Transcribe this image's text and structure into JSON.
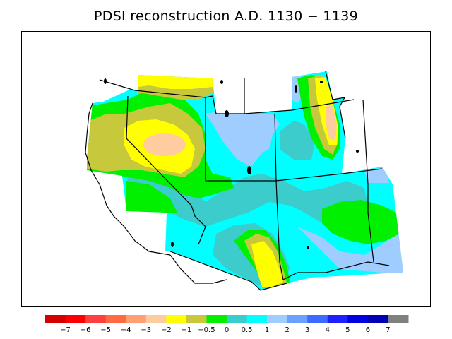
{
  "title": "PDSI reconstruction A.D. 1130 − 1139",
  "legend": {
    "colors": [
      "#d40000",
      "#fa0000",
      "#ff3f3f",
      "#ff6a40",
      "#ffa070",
      "#ffcca0",
      "#ffff00",
      "#c8c83c",
      "#00f000",
      "#3ccccc",
      "#00ffff",
      "#a0cdff",
      "#6ca0ff",
      "#3c6cff",
      "#2020ff",
      "#0000e0",
      "#0000b4",
      "#808080"
    ],
    "ticks": [
      "−7",
      "−6",
      "−5",
      "−4",
      "−3",
      "−2",
      "−1",
      "−0.5",
      "0",
      "0.5",
      "1",
      "2",
      "3",
      "4",
      "5",
      "6",
      "7"
    ]
  },
  "map": {
    "colors": {
      "yellow": "#ffff00",
      "olive": "#c8c83c",
      "green": "#00f000",
      "teal": "#3ccccc",
      "cyan": "#00ffff",
      "lightblue": "#a0cdff",
      "peach": "#ffcca0"
    }
  }
}
